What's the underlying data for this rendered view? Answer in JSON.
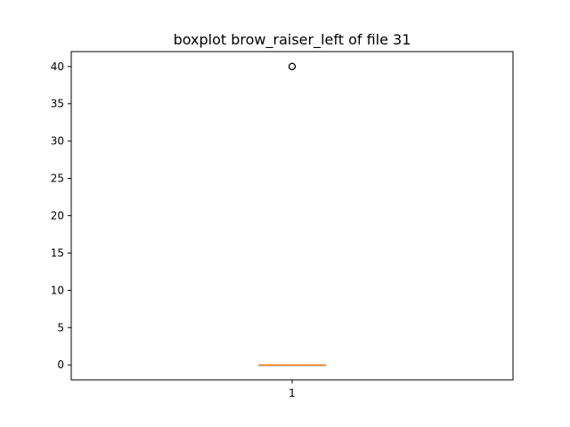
{
  "chart_data": {
    "type": "boxplot",
    "title": "boxplot brow_raiser_left of file 31",
    "xlabel": "",
    "ylabel": "",
    "categories": [
      "1"
    ],
    "ylim": [
      -2,
      42
    ],
    "yticks": [
      0,
      5,
      10,
      15,
      20,
      25,
      30,
      35,
      40
    ],
    "grid": false,
    "boxes": [
      {
        "category": "1",
        "min": 0,
        "q1": 0,
        "median": 0,
        "q3": 0,
        "max": 0,
        "outliers": [
          40,
          40,
          40,
          40
        ]
      }
    ],
    "colors": {
      "box": "#000000",
      "median": "#ff7f0e",
      "outlier": "#000000",
      "axes": "#000000"
    }
  }
}
